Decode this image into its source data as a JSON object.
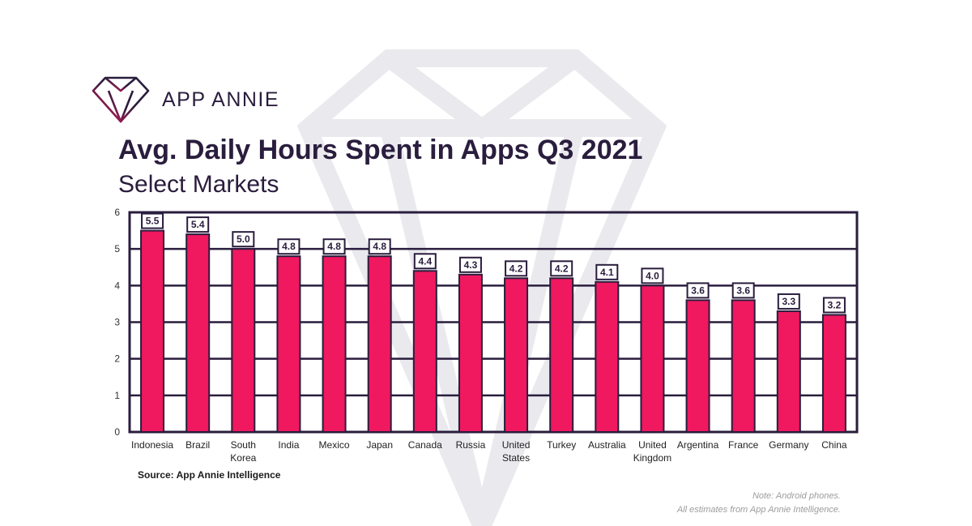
{
  "brand": {
    "name": "APP ANNIE",
    "logo_icon": "diamond-logo-icon",
    "accent": "#e8175d",
    "dark": "#2a1d3d"
  },
  "chart_data": {
    "type": "bar",
    "title": "Avg. Daily Hours Spent in Apps Q3 2021",
    "subtitle": "Select Markets",
    "xlabel": "",
    "ylabel": "",
    "ylim": [
      0,
      6
    ],
    "yticks": [
      "0",
      "1",
      "2",
      "3",
      "4",
      "5",
      "6"
    ],
    "grid": true,
    "bar_color": "#f0185f",
    "categories": [
      [
        "Indonesia"
      ],
      [
        "Brazil"
      ],
      [
        "South",
        "Korea"
      ],
      [
        "India"
      ],
      [
        "Mexico"
      ],
      [
        "Japan"
      ],
      [
        "Canada"
      ],
      [
        "Russia"
      ],
      [
        "United",
        "States"
      ],
      [
        "Turkey"
      ],
      [
        "Australia"
      ],
      [
        "United",
        "Kingdom"
      ],
      [
        "Argentina"
      ],
      [
        "France"
      ],
      [
        "Germany"
      ],
      [
        "China"
      ]
    ],
    "values": [
      5.5,
      5.4,
      5.0,
      4.8,
      4.8,
      4.8,
      4.4,
      4.3,
      4.2,
      4.2,
      4.1,
      4.0,
      3.6,
      3.6,
      3.3,
      3.2
    ],
    "data_labels": [
      "5.5",
      "5.4",
      "5.0",
      "4.8",
      "4.8",
      "4.8",
      "4.4",
      "4.3",
      "4.2",
      "4.2",
      "4.1",
      "4.0",
      "3.6",
      "3.6",
      "3.3",
      "3.2"
    ]
  },
  "footer": {
    "source": "Source: App Annie Intelligence",
    "note_line1": "Note: Android phones.",
    "note_line2": "All estimates from App Annie Intelligence."
  }
}
